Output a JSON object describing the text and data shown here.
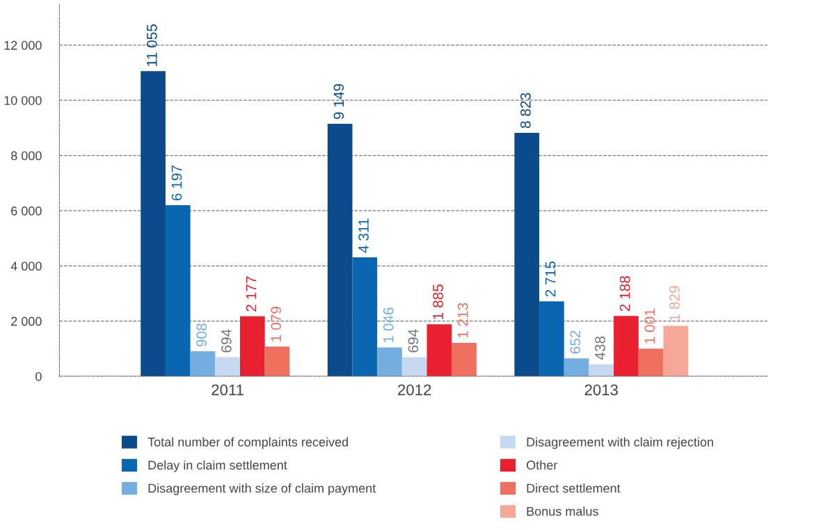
{
  "chart_data": {
    "type": "bar",
    "categories": [
      "2011",
      "2012",
      "2013"
    ],
    "series": [
      {
        "name": "Total number of complaints received",
        "color": "#0b4a8b",
        "values": [
          11055,
          9149,
          8823
        ],
        "value_labels": [
          "11 055",
          "9 149",
          "8 823"
        ]
      },
      {
        "name": "Delay in claim settlement",
        "color": "#0a66b0",
        "values": [
          6197,
          4311,
          2715
        ],
        "value_labels": [
          "6 197",
          "4 311",
          "2 715"
        ]
      },
      {
        "name": "Disagreement with size of claim payment",
        "color": "#74aee0",
        "values": [
          908,
          1046,
          652
        ],
        "value_labels": [
          "908",
          "1 046",
          "652"
        ]
      },
      {
        "name": "Disagreement with claim rejection",
        "color": "#c5daf0",
        "values": [
          694,
          694,
          438
        ],
        "value_labels": [
          "694",
          "694",
          "438"
        ]
      },
      {
        "name": "Other",
        "color": "#e8202f",
        "values": [
          2177,
          1885,
          2188
        ],
        "value_labels": [
          "2 177",
          "1 885",
          "2 188"
        ]
      },
      {
        "name": "Direct settlement",
        "color": "#f07060",
        "values": [
          1079,
          1213,
          1001
        ],
        "value_labels": [
          "1 079",
          "1 213",
          "1 001"
        ]
      },
      {
        "name": "Bonus malus",
        "color": "#f5a898",
        "values": [
          null,
          null,
          1829
        ],
        "value_labels": [
          null,
          null,
          "1 829"
        ]
      }
    ],
    "ylim": [
      0,
      13500
    ],
    "yticks": [
      {
        "value": 0,
        "label": "0"
      },
      {
        "value": 2000,
        "label": "2 000"
      },
      {
        "value": 4000,
        "label": "4 000"
      },
      {
        "value": 6000,
        "label": "6 000"
      },
      {
        "value": 8000,
        "label": "8 000"
      },
      {
        "value": 10000,
        "label": "10 000"
      },
      {
        "value": 12000,
        "label": "12 000"
      }
    ],
    "grid": "y",
    "legend": "bottom"
  }
}
